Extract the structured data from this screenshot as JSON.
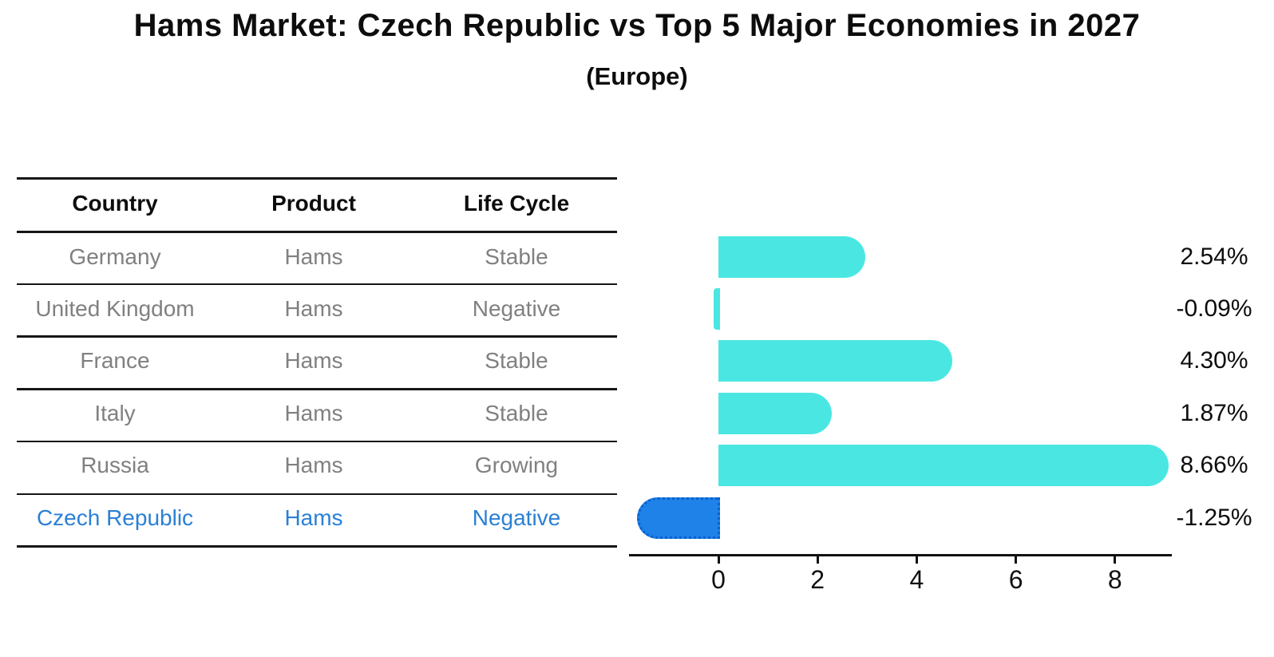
{
  "header": {
    "title": "Hams Market: Czech Republic vs Top 5 Major Economies in 2027",
    "subtitle": "(Europe)"
  },
  "table": {
    "columns": [
      "Country",
      "Product",
      "Life Cycle"
    ],
    "rows": [
      {
        "country": "Germany",
        "product": "Hams",
        "life_cycle": "Stable",
        "highlight": false
      },
      {
        "country": "United Kingdom",
        "product": "Hams",
        "life_cycle": "Negative",
        "highlight": false
      },
      {
        "country": "France",
        "product": "Hams",
        "life_cycle": "Stable",
        "highlight": false
      },
      {
        "country": "Italy",
        "product": "Hams",
        "life_cycle": "Stable",
        "highlight": false
      },
      {
        "country": "Russia",
        "product": "Hams",
        "life_cycle": "Growing",
        "highlight": false
      },
      {
        "country": "Czech Republic",
        "product": "Hams",
        "life_cycle": "Negative",
        "highlight": true
      }
    ]
  },
  "chart_data": {
    "type": "bar",
    "orientation": "horizontal",
    "title": "Hams Market: Czech Republic vs Top 5 Major Economies in 2027 (Europe)",
    "categories": [
      "Germany",
      "United Kingdom",
      "France",
      "Italy",
      "Russia",
      "Czech Republic"
    ],
    "values": [
      2.54,
      -0.09,
      4.3,
      1.87,
      8.66,
      -1.25
    ],
    "value_labels": [
      "2.54%",
      "-0.09%",
      "4.30%",
      "1.87%",
      "8.66%",
      "-1.25%"
    ],
    "x_ticks": [
      0,
      2,
      4,
      6,
      8
    ],
    "xlim": [
      -1.8,
      9.15
    ],
    "grid": false,
    "highlight_category": "Czech Republic",
    "colors": {
      "bar": "#4AE7E2",
      "highlight_bar": "#1E82E8",
      "highlight_border": "#0C5FD0",
      "highlight_text": "#2A80D5",
      "row_text": "#808080",
      "text": "#0D0D0D"
    }
  }
}
